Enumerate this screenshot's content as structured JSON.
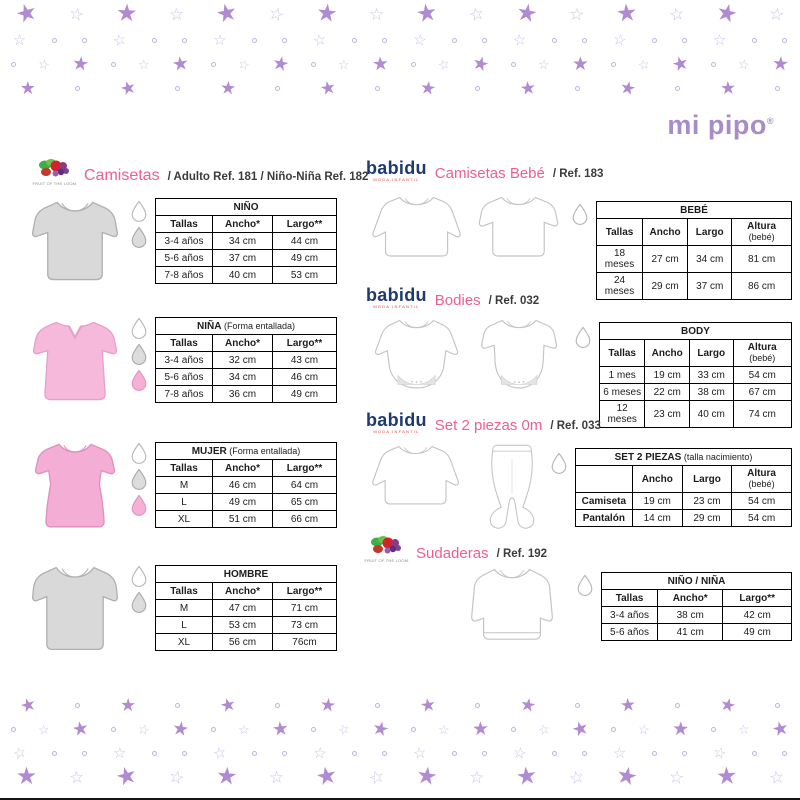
{
  "logo": {
    "text": "mi pipo",
    "reg": "®"
  },
  "decor": {
    "filled_star": "★",
    "outline_star": "☆",
    "star_fill_color": "#b18bd2",
    "star_outline_color": "#c9c3e3",
    "dot_color": "#bdb6db"
  },
  "colors": {
    "title_pink": "#ee5f90",
    "babidu_navy": "#1e3a6e",
    "logo_purple": "#a78cc8"
  },
  "left": {
    "header": {
      "brand": "FRUIT OF THE LOOM.",
      "title": "Camisetas",
      "ref": "/ Adulto Ref. 181 / Niño-Niña Ref. 182"
    },
    "groups": [
      {
        "garment": "camiseta-nino-gris",
        "drops": [
          "white",
          "gray"
        ],
        "table": {
          "title": "NIÑO",
          "note": "",
          "cols": [
            "Tallas",
            "Ancho*",
            "Largo**"
          ],
          "rows": [
            [
              "3-4 años",
              "34 cm",
              "44 cm"
            ],
            [
              "5-6 años",
              "37 cm",
              "49 cm"
            ],
            [
              "7-8 años",
              "40 cm",
              "53 cm"
            ]
          ]
        }
      },
      {
        "garment": "camiseta-nina-rosa",
        "drops": [
          "white",
          "gray",
          "pink"
        ],
        "table": {
          "title": "NIÑA",
          "note": "(Forma entallada)",
          "cols": [
            "Tallas",
            "Ancho*",
            "Largo**"
          ],
          "rows": [
            [
              "3-4 años",
              "32 cm",
              "43 cm"
            ],
            [
              "5-6 años",
              "34 cm",
              "46 cm"
            ],
            [
              "7-8 años",
              "36 cm",
              "49 cm"
            ]
          ]
        }
      },
      {
        "garment": "camiseta-mujer-rosa",
        "drops": [
          "white",
          "gray",
          "pink"
        ],
        "table": {
          "title": "MUJER",
          "note": "(Forma entallada)",
          "cols": [
            "Tallas",
            "Ancho*",
            "Largo**"
          ],
          "rows": [
            [
              "M",
              "46 cm",
              "64 cm"
            ],
            [
              "L",
              "49 cm",
              "65 cm"
            ],
            [
              "XL",
              "51 cm",
              "66 cm"
            ]
          ]
        }
      },
      {
        "garment": "camiseta-hombre-gris",
        "drops": [
          "white",
          "gray"
        ],
        "table": {
          "title": "HOMBRE",
          "note": "",
          "cols": [
            "Tallas",
            "Ancho*",
            "Largo**"
          ],
          "rows": [
            [
              "M",
              "47 cm",
              "71 cm"
            ],
            [
              "L",
              "53 cm",
              "73 cm"
            ],
            [
              "XL",
              "56 cm",
              "76cm"
            ]
          ]
        }
      }
    ]
  },
  "right": {
    "sections": [
      {
        "brand": "babidu",
        "brand_sub": "moda infantil",
        "title": "Camisetas Bebé",
        "ref": "/ Ref. 183",
        "drops": [
          "white"
        ],
        "table": {
          "title": "BEBÉ",
          "note": "",
          "cols": [
            "Tallas",
            "Ancho",
            "Largo",
            "Altura (bebé)"
          ],
          "rows": [
            [
              "18 meses",
              "27 cm",
              "34 cm",
              "81 cm"
            ],
            [
              "24 meses",
              "29 cm",
              "37 cm",
              "86 cm"
            ]
          ]
        }
      },
      {
        "brand": "babidu",
        "brand_sub": "moda infantil",
        "title": "Bodies",
        "ref": "/ Ref. 032",
        "drops": [
          "white"
        ],
        "table": {
          "title": "BODY",
          "note": "",
          "cols": [
            "Tallas",
            "Ancho",
            "Largo",
            "Altura (bebé)"
          ],
          "rows": [
            [
              "1 mes",
              "19 cm",
              "33 cm",
              "54 cm"
            ],
            [
              "6 meses",
              "22 cm",
              "38 cm",
              "67 cm"
            ],
            [
              "12 meses",
              "23 cm",
              "40 cm",
              "74 cm"
            ]
          ]
        }
      },
      {
        "brand": "babidu",
        "brand_sub": "moda infantil",
        "title": "Set 2 piezas 0m",
        "ref": "/ Ref. 033",
        "drops": [
          "white"
        ],
        "table": {
          "title": "SET 2 PIEZAS",
          "note": "(talla nacimiento)",
          "cols": [
            "",
            "Ancho",
            "Largo",
            "Altura (bebé)"
          ],
          "bold_first_col": true,
          "rows": [
            [
              "Camiseta",
              "19 cm",
              "23 cm",
              "54 cm"
            ],
            [
              "Pantalón",
              "14 cm",
              "29 cm",
              "54 cm"
            ]
          ]
        }
      },
      {
        "brand": "fruit-of-the-loom",
        "brand_text": "FRUIT OF THE LOOM.",
        "title": "Sudaderas",
        "ref": "/ Ref. 192",
        "drops": [
          "white"
        ],
        "table": {
          "title": "NIÑO / NIÑA",
          "note": "",
          "cols": [
            "Tallas",
            "Ancho*",
            "Largo**"
          ],
          "rows": [
            [
              "3-4 años",
              "38 cm",
              "42 cm"
            ],
            [
              "5-6 años",
              "41 cm",
              "49 cm"
            ]
          ]
        }
      }
    ]
  }
}
